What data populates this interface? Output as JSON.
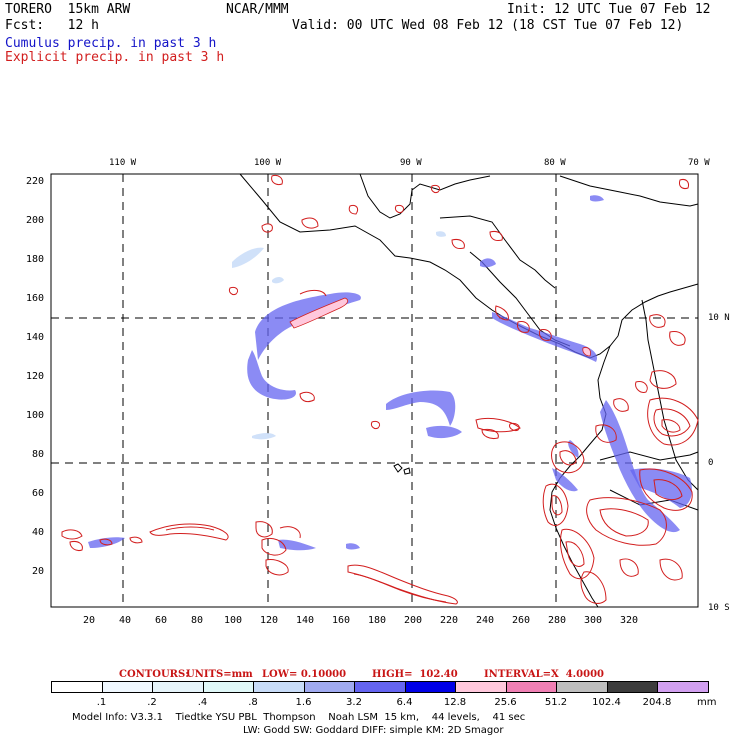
{
  "header": {
    "model": "TORERO  15km ARW",
    "org": "NCAR/MMM",
    "init": "Init: 12 UTC Tue 07 Feb 12",
    "fcst": "Fcst:   12 h",
    "valid": "Valid: 00 UTC Wed 08 Feb 12 (18 CST Tue 07 Feb 12)",
    "cumulus_label": "Cumulus precip. in past 3 h",
    "explicit_label": "Explicit precip. in past 3 h"
  },
  "colors": {
    "cumulus": "#1414c8",
    "explicit": "#d21e1e",
    "coast": "#000000"
  },
  "map": {
    "lon_labels": [
      "110 W",
      "100 W",
      "90 W",
      "80 W",
      "70 W"
    ],
    "lat_labels": [
      "10 N",
      "0",
      "10 S"
    ],
    "y_ticks": [
      "220",
      "200",
      "180",
      "160",
      "140",
      "120",
      "100",
      "80",
      "60",
      "40",
      "20"
    ],
    "x_ticks": [
      "20",
      "40",
      "60",
      "80",
      "100",
      "120",
      "140",
      "160",
      "180",
      "200",
      "220",
      "240",
      "260",
      "280",
      "300",
      "320"
    ]
  },
  "contours": {
    "label": "CONTOURS:",
    "units": "UNITS=mm",
    "low": "LOW= 0.10000",
    "high": "HIGH=  102.40",
    "interval": "INTERVAL=X  4.0000"
  },
  "legend": {
    "values": [
      ".1",
      ".2",
      ".4",
      ".8",
      "1.6",
      "3.2",
      "6.4",
      "12.8",
      "25.6",
      "51.2",
      "102.4",
      "204.8"
    ],
    "unit": "mm",
    "colors": [
      "#ffffff",
      "#f0f8ff",
      "#e6f4fa",
      "#e0f8f8",
      "#c8dcf8",
      "#a0aaf0",
      "#6464f0",
      "#0000e6",
      "#ffc8dc",
      "#f080b4",
      "#bebebe",
      "#3c3c3c",
      "#d2a0f0"
    ]
  },
  "footer": {
    "line1": "Model Info: V3.3.1    Tiedtke YSU PBL  Thompson    Noah LSM  15 km,    44 levels,    41 sec",
    "line2": "LW: Godd SW: Goddard DIFF: simple KM: 2D Smagor"
  }
}
